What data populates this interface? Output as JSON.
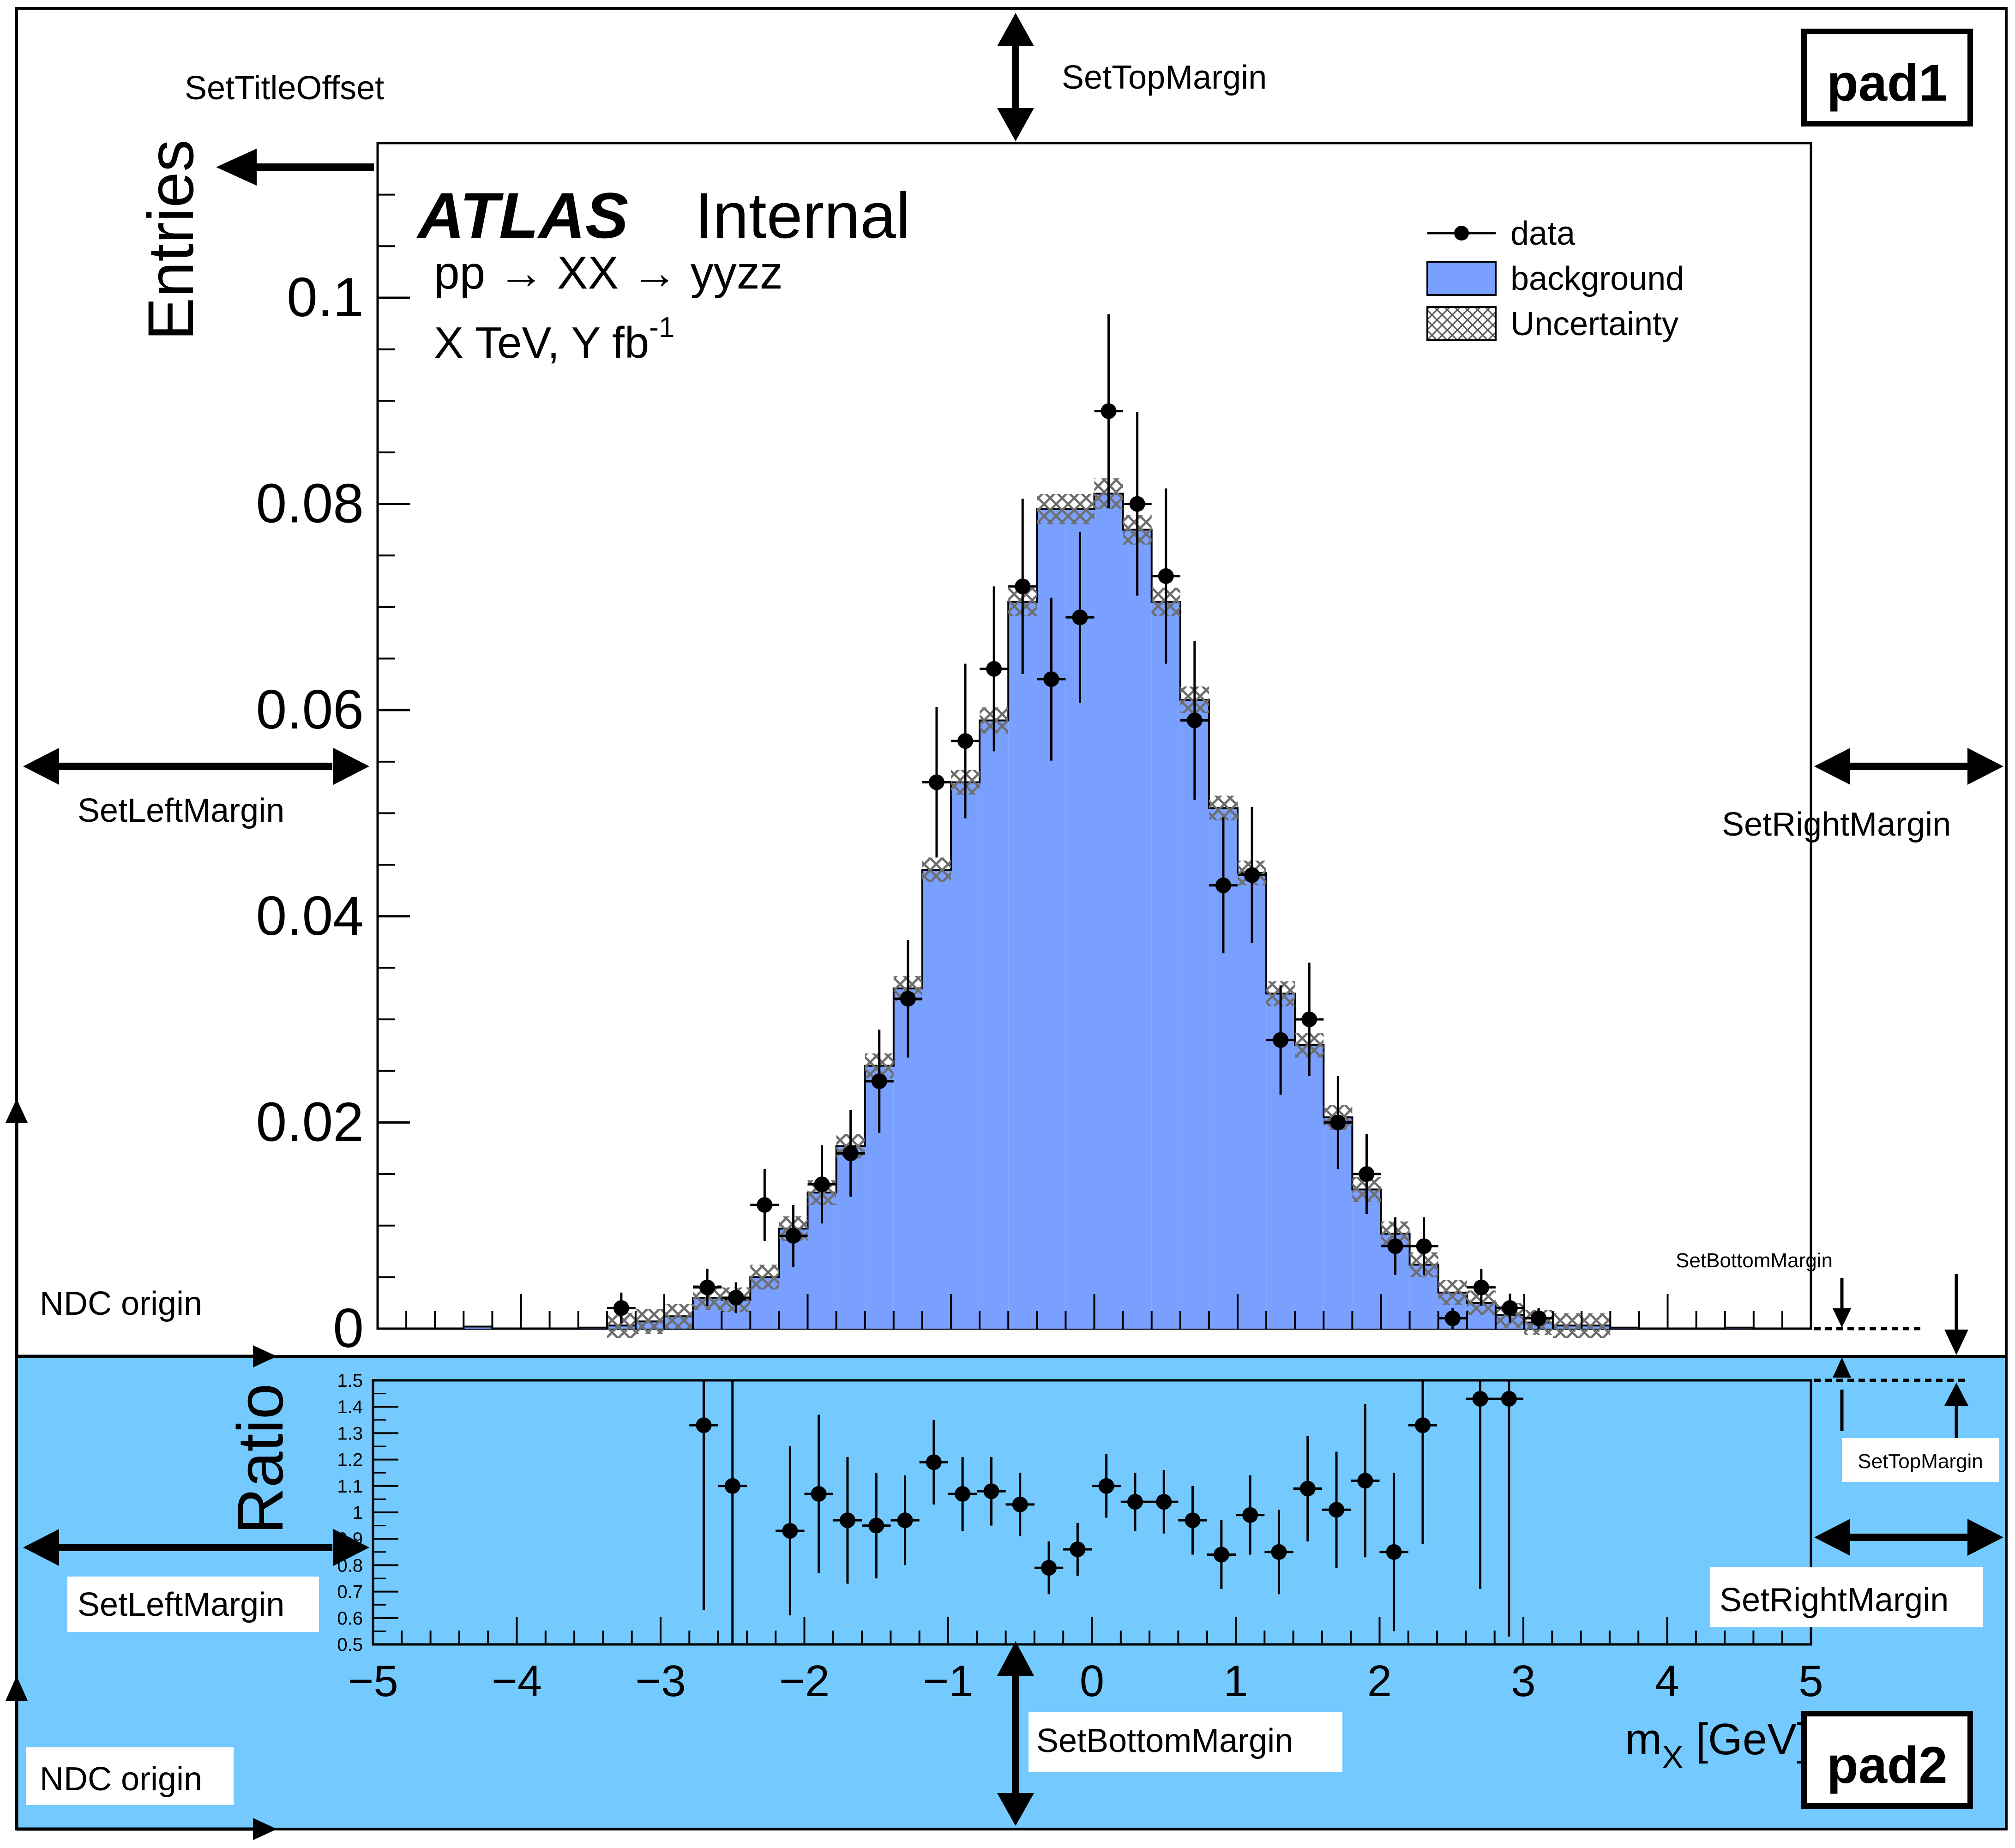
{
  "colors": {
    "background_fill": "#7aa0ff",
    "pad2_fill": "#74c9ff",
    "frame": "#000000",
    "hatch": "#6e6e6e",
    "label_box": "#ffffff"
  },
  "annotations": {
    "title_offset": "SetTitleOffset",
    "top_margin": "SetTopMargin",
    "pad1": "pad1",
    "pad2": "pad2",
    "left_margin": "SetLeftMargin",
    "right_margin": "SetRightMargin",
    "ndc_origin": "NDC origin",
    "bottom_margin_small": "SetBottomMargin",
    "top_margin_small": "SetTopMargin",
    "left_margin_pad2": "SetLeftMargin",
    "right_margin_pad2": "SetRightMargin",
    "bottom_margin_pad2": "SetBottomMargin",
    "ndc_origin_pad2": "NDC origin"
  },
  "chart_data": [
    {
      "type": "bar",
      "ylabel": "Entries",
      "ylim": [
        0,
        0.115
      ],
      "xlim": [
        -5,
        5
      ],
      "y_ticks": [
        0,
        0.02,
        0.04,
        0.06,
        0.08,
        0.1
      ],
      "y_tick_labels": [
        "0",
        "0.02",
        "0.04",
        "0.06",
        "0.08",
        "0.1"
      ],
      "atlas": {
        "brand": "ATLAS",
        "status": "Internal",
        "process": "pp → XX → yyzz",
        "energy": "X TeV, Y fb",
        "energy_sup": "-1"
      },
      "legend": {
        "placement": "top-right",
        "entries": [
          "data",
          "background",
          "Uncertainty"
        ]
      },
      "bin_width": 0.2,
      "background": [
        {
          "x": -4.9,
          "y": 0
        },
        {
          "x": -4.7,
          "y": 0
        },
        {
          "x": -4.5,
          "y": 0
        },
        {
          "x": -4.3,
          "y": 0.0002
        },
        {
          "x": -4.1,
          "y": 0
        },
        {
          "x": -3.9,
          "y": 0
        },
        {
          "x": -3.7,
          "y": 0
        },
        {
          "x": -3.5,
          "y": 0.0001
        },
        {
          "x": -3.3,
          "y": 0.0003
        },
        {
          "x": -3.1,
          "y": 0.0007
        },
        {
          "x": -2.9,
          "y": 0.0012
        },
        {
          "x": -2.7,
          "y": 0.003
        },
        {
          "x": -2.5,
          "y": 0.0028
        },
        {
          "x": -2.3,
          "y": 0.005
        },
        {
          "x": -2.1,
          "y": 0.0097
        },
        {
          "x": -1.9,
          "y": 0.0132
        },
        {
          "x": -1.7,
          "y": 0.0177
        },
        {
          "x": -1.5,
          "y": 0.0255
        },
        {
          "x": -1.3,
          "y": 0.033
        },
        {
          "x": -1.1,
          "y": 0.0445
        },
        {
          "x": -0.9,
          "y": 0.053
        },
        {
          "x": -0.7,
          "y": 0.059
        },
        {
          "x": -0.5,
          "y": 0.0705
        },
        {
          "x": -0.3,
          "y": 0.0795
        },
        {
          "x": -0.1,
          "y": 0.0795
        },
        {
          "x": 0.1,
          "y": 0.081
        },
        {
          "x": 0.3,
          "y": 0.0775
        },
        {
          "x": 0.5,
          "y": 0.0705
        },
        {
          "x": 0.7,
          "y": 0.061
        },
        {
          "x": 0.9,
          "y": 0.0505
        },
        {
          "x": 1.1,
          "y": 0.0442
        },
        {
          "x": 1.3,
          "y": 0.0325
        },
        {
          "x": 1.5,
          "y": 0.0275
        },
        {
          "x": 1.7,
          "y": 0.0205
        },
        {
          "x": 1.9,
          "y": 0.0135
        },
        {
          "x": 2.1,
          "y": 0.0092
        },
        {
          "x": 2.3,
          "y": 0.0062
        },
        {
          "x": 2.5,
          "y": 0.0035
        },
        {
          "x": 2.7,
          "y": 0.0025
        },
        {
          "x": 2.9,
          "y": 0.0013
        },
        {
          "x": 3.1,
          "y": 0.0006
        },
        {
          "x": 3.3,
          "y": 0.0003
        },
        {
          "x": 3.5,
          "y": 0.0003
        },
        {
          "x": 3.7,
          "y": 0.0001
        },
        {
          "x": 3.9,
          "y": 0
        },
        {
          "x": 4.1,
          "y": 0
        },
        {
          "x": 4.3,
          "y": 0
        },
        {
          "x": 4.5,
          "y": 0.0001
        },
        {
          "x": 4.7,
          "y": 0
        },
        {
          "x": 4.9,
          "y": 0
        }
      ],
      "data": [
        {
          "x": -3.3,
          "y": 0.002,
          "err": 0.0015
        },
        {
          "x": -2.7,
          "y": 0.004,
          "err": 0.0018
        },
        {
          "x": -2.5,
          "y": 0.003,
          "err": 0.0015
        },
        {
          "x": -2.3,
          "y": 0.012,
          "err": 0.0035
        },
        {
          "x": -2.1,
          "y": 0.009,
          "err": 0.003
        },
        {
          "x": -1.9,
          "y": 0.014,
          "err": 0.0038
        },
        {
          "x": -1.7,
          "y": 0.017,
          "err": 0.0042
        },
        {
          "x": -1.5,
          "y": 0.024,
          "err": 0.005
        },
        {
          "x": -1.3,
          "y": 0.032,
          "err": 0.0057
        },
        {
          "x": -1.1,
          "y": 0.053,
          "err": 0.0073
        },
        {
          "x": -0.9,
          "y": 0.057,
          "err": 0.0075
        },
        {
          "x": -0.7,
          "y": 0.064,
          "err": 0.008
        },
        {
          "x": -0.5,
          "y": 0.072,
          "err": 0.0085
        },
        {
          "x": -0.3,
          "y": 0.063,
          "err": 0.0079
        },
        {
          "x": -0.1,
          "y": 0.069,
          "err": 0.0083
        },
        {
          "x": 0.1,
          "y": 0.089,
          "err": 0.0094
        },
        {
          "x": 0.3,
          "y": 0.08,
          "err": 0.0089
        },
        {
          "x": 0.5,
          "y": 0.073,
          "err": 0.0085
        },
        {
          "x": 0.7,
          "y": 0.059,
          "err": 0.0077
        },
        {
          "x": 0.9,
          "y": 0.043,
          "err": 0.0066
        },
        {
          "x": 1.1,
          "y": 0.044,
          "err": 0.0066
        },
        {
          "x": 1.3,
          "y": 0.028,
          "err": 0.0053
        },
        {
          "x": 1.5,
          "y": 0.03,
          "err": 0.0055
        },
        {
          "x": 1.7,
          "y": 0.02,
          "err": 0.0045
        },
        {
          "x": 1.9,
          "y": 0.015,
          "err": 0.0039
        },
        {
          "x": 2.1,
          "y": 0.008,
          "err": 0.0028
        },
        {
          "x": 2.3,
          "y": 0.008,
          "err": 0.0028
        },
        {
          "x": 2.5,
          "y": 0.001,
          "err": 0.001
        },
        {
          "x": 2.7,
          "y": 0.004,
          "err": 0.0018
        },
        {
          "x": 2.9,
          "y": 0.002,
          "err": 0.0014
        },
        {
          "x": 3.1,
          "y": 0.001,
          "err": 0.001
        }
      ]
    },
    {
      "type": "scatter",
      "ylabel": "Ratio",
      "xlabel": "m",
      "xlabel_sub": "X",
      "xlabel_unit": " [GeV]",
      "ylim": [
        0.5,
        1.5
      ],
      "xlim": [
        -5,
        5
      ],
      "x_ticks": [
        -5,
        -4,
        -3,
        -2,
        -1,
        0,
        1,
        2,
        3,
        4,
        5
      ],
      "x_tick_labels": [
        "−5",
        "−4",
        "−3",
        "−2",
        "−1",
        "0",
        "1",
        "2",
        "3",
        "4",
        "5"
      ],
      "y_ticks": [
        0.5,
        0.6,
        0.7,
        0.8,
        0.9,
        1,
        1.1,
        1.2,
        1.3,
        1.4,
        1.5
      ],
      "y_tick_labels": [
        "0.5",
        "0.6",
        "0.7",
        "0.8",
        "0.9",
        "1",
        "1.1",
        "1.2",
        "1.3",
        "1.4",
        "1.5"
      ],
      "points": [
        {
          "x": -2.7,
          "y": 1.33,
          "err": 0.7
        },
        {
          "x": -2.5,
          "y": 1.1,
          "err": 0.7
        },
        {
          "x": -2.1,
          "y": 0.93,
          "err": 0.32
        },
        {
          "x": -1.9,
          "y": 1.07,
          "err": 0.3
        },
        {
          "x": -1.7,
          "y": 0.97,
          "err": 0.24
        },
        {
          "x": -1.5,
          "y": 0.95,
          "err": 0.2
        },
        {
          "x": -1.3,
          "y": 0.97,
          "err": 0.17
        },
        {
          "x": -1.1,
          "y": 1.19,
          "err": 0.16
        },
        {
          "x": -0.9,
          "y": 1.07,
          "err": 0.14
        },
        {
          "x": -0.7,
          "y": 1.08,
          "err": 0.13
        },
        {
          "x": -0.5,
          "y": 1.03,
          "err": 0.12
        },
        {
          "x": -0.3,
          "y": 0.79,
          "err": 0.1
        },
        {
          "x": -0.1,
          "y": 0.86,
          "err": 0.1
        },
        {
          "x": 0.1,
          "y": 1.1,
          "err": 0.12
        },
        {
          "x": 0.3,
          "y": 1.04,
          "err": 0.11
        },
        {
          "x": 0.5,
          "y": 1.04,
          "err": 0.12
        },
        {
          "x": 0.7,
          "y": 0.97,
          "err": 0.13
        },
        {
          "x": 0.9,
          "y": 0.84,
          "err": 0.13
        },
        {
          "x": 1.1,
          "y": 0.99,
          "err": 0.15
        },
        {
          "x": 1.3,
          "y": 0.85,
          "err": 0.16
        },
        {
          "x": 1.5,
          "y": 1.09,
          "err": 0.2
        },
        {
          "x": 1.7,
          "y": 1.01,
          "err": 0.22
        },
        {
          "x": 1.9,
          "y": 1.12,
          "err": 0.29
        },
        {
          "x": 2.1,
          "y": 0.85,
          "err": 0.3
        },
        {
          "x": 2.3,
          "y": 1.33,
          "err": 0.45
        },
        {
          "x": 2.7,
          "y": 1.43,
          "err": 0.72
        },
        {
          "x": 2.9,
          "y": 1.43,
          "err": 0.9
        }
      ]
    }
  ]
}
